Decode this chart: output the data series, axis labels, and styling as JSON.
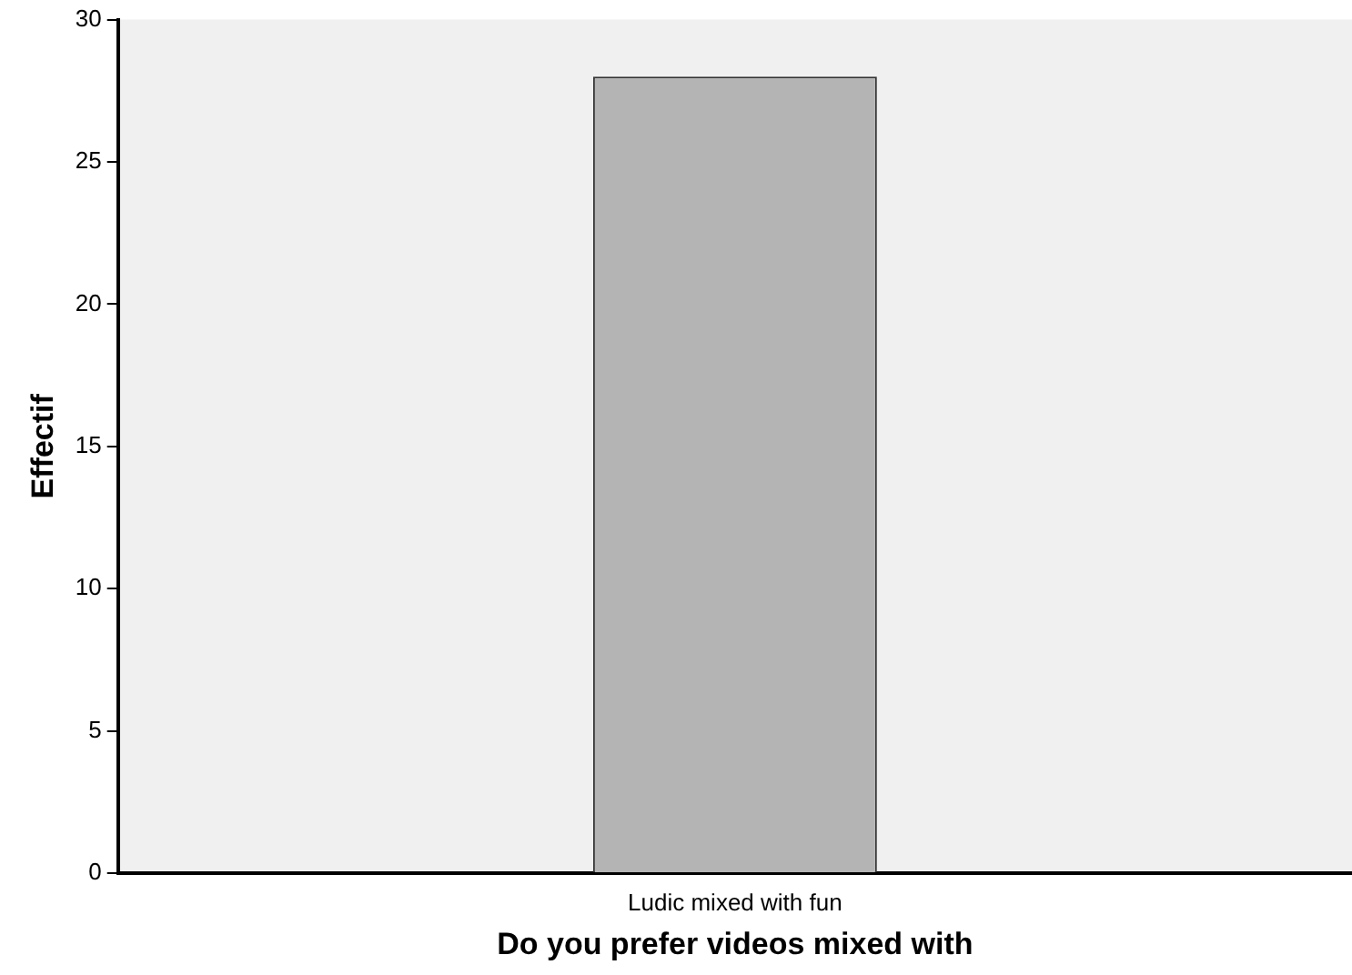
{
  "chart_data": {
    "type": "bar",
    "xlabel": "Do you prefer videos mixed with",
    "ylabel": "Effectif",
    "categories": [
      "Ludic mixed with fun"
    ],
    "values": [
      28
    ],
    "color": "#b4b4b4",
    "ylim": [
      0,
      30
    ],
    "yticks": [
      0,
      5,
      10,
      15,
      20,
      25,
      30
    ],
    "grid": false,
    "legend": false
  }
}
